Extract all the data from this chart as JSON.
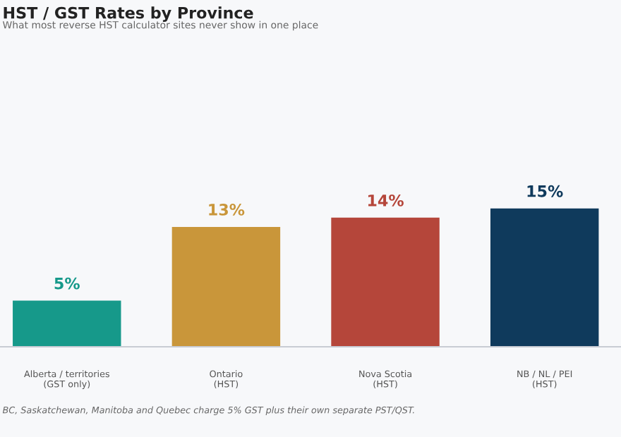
{
  "chart_data": {
    "type": "bar",
    "title": "HST / GST Rates by Province",
    "subtitle": "What most reverse HST calculator sites never show in one place",
    "categories": [
      "Alberta / territories\n(GST only)",
      "Ontario\n(HST)",
      "Nova Scotia\n(HST)",
      "NB / NL / PEI\n(HST)"
    ],
    "values": [
      5,
      13,
      14,
      15
    ],
    "colors": [
      "#16998a",
      "#c9963a",
      "#b5463a",
      "#0f3a5c"
    ],
    "value_labels": [
      "5%",
      "13%",
      "14%",
      "15%"
    ],
    "grid": false,
    "legend": false,
    "annotations": [
      "BC, Saskatchewan, Manitoba and Quebec charge 5% GST plus their own separate PST/QST."
    ]
  }
}
